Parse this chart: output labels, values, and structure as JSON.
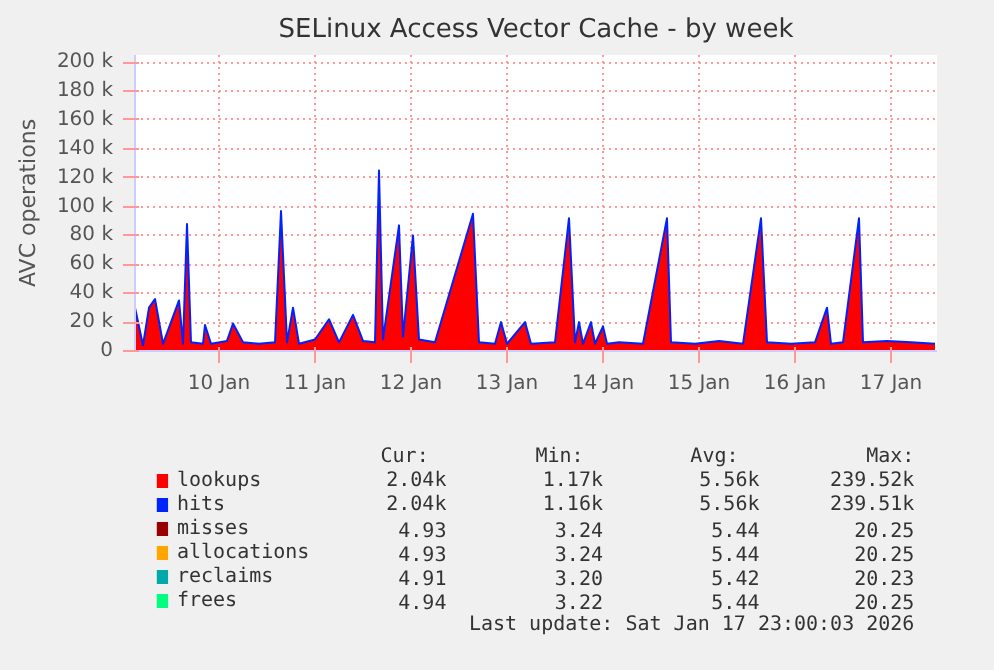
{
  "chart_data": {
    "type": "line",
    "title": "SELinux Access Vector Cache - by week",
    "ylabel": "AVC operations",
    "x": [
      "2026-01-09T15:00",
      "2026-01-09T17:00",
      "2026-01-09T18:30",
      "2026-01-09T20:00",
      "2026-01-09T22:00",
      "2026-01-10T02:00",
      "2026-01-10T03:00",
      "2026-01-10T04:00",
      "2026-01-10T05:00",
      "2026-01-10T08:00",
      "2026-01-10T08:30",
      "2026-01-10T10:00",
      "2026-01-10T14:00",
      "2026-01-10T15:30",
      "2026-01-10T18:00",
      "2026-01-10T22:00",
      "2026-01-11T02:00",
      "2026-01-11T03:30",
      "2026-01-11T05:00",
      "2026-01-11T06:30",
      "2026-01-11T08:00",
      "2026-01-11T12:00",
      "2026-01-11T15:30",
      "2026-01-11T18:00",
      "2026-01-11T21:30",
      "2026-01-12T00:00",
      "2026-01-12T03:00",
      "2026-01-12T04:00",
      "2026-01-12T05:00",
      "2026-01-12T09:00",
      "2026-01-12T10:00",
      "2026-01-12T12:30",
      "2026-01-12T14:00",
      "2026-01-12T18:00",
      "2026-01-13T03:30",
      "2026-01-13T05:00",
      "2026-01-13T09:00",
      "2026-01-13T10:30",
      "2026-01-13T12:00",
      "2026-01-13T16:30",
      "2026-01-13T18:00",
      "2026-01-14T00:00",
      "2026-01-14T03:30",
      "2026-01-14T05:00",
      "2026-01-14T06:00",
      "2026-01-14T07:00",
      "2026-01-14T09:00",
      "2026-01-14T10:00",
      "2026-01-14T12:00",
      "2026-01-14T13:00",
      "2026-01-14T16:00",
      "2026-01-14T22:00",
      "2026-01-15T04:00",
      "2026-01-15T05:00",
      "2026-01-15T11:00",
      "2026-01-15T17:00",
      "2026-01-15T23:00",
      "2026-01-16T03:30",
      "2026-01-16T05:00",
      "2026-01-16T11:00",
      "2026-01-16T17:00",
      "2026-01-16T20:00",
      "2026-01-16T21:00",
      "2026-01-17T00:00",
      "2026-01-17T04:00",
      "2026-01-17T05:00",
      "2026-01-17T11:00",
      "2026-01-17T17:00",
      "2026-01-17T23:00"
    ],
    "series": [
      {
        "name": "lookups",
        "type": "area",
        "color": "#ff0000",
        "values": [
          30000,
          4000,
          30000,
          36000,
          5000,
          35000,
          5000,
          88000,
          6000,
          5000,
          18000,
          5000,
          7000,
          19000,
          6000,
          5000,
          6000,
          97000,
          6000,
          30000,
          5000,
          8000,
          22000,
          6000,
          25000,
          7000,
          6000,
          125000,
          8000,
          87000,
          10000,
          80000,
          8000,
          6000,
          95000,
          6000,
          5000,
          20000,
          5000,
          20000,
          5000,
          6000,
          92000,
          6000,
          20000,
          5000,
          20000,
          5000,
          17000,
          5000,
          6000,
          5000,
          92000,
          6000,
          5000,
          7000,
          5000,
          92000,
          6000,
          5000,
          6000,
          30000,
          5000,
          6000,
          92000,
          6000,
          7000,
          6000,
          5000
        ]
      },
      {
        "name": "hits",
        "color": "#0022ff",
        "values": [
          30000,
          4000,
          30000,
          36000,
          5000,
          35000,
          5000,
          88000,
          6000,
          5000,
          18000,
          5000,
          7000,
          19000,
          6000,
          5000,
          6000,
          97000,
          6000,
          30000,
          5000,
          8000,
          22000,
          6000,
          25000,
          7000,
          6000,
          125000,
          8000,
          87000,
          10000,
          80000,
          8000,
          6000,
          95000,
          6000,
          5000,
          20000,
          5000,
          20000,
          5000,
          6000,
          92000,
          6000,
          20000,
          5000,
          20000,
          5000,
          17000,
          5000,
          6000,
          5000,
          92000,
          6000,
          5000,
          7000,
          5000,
          92000,
          6000,
          5000,
          6000,
          30000,
          5000,
          6000,
          92000,
          6000,
          7000,
          6000,
          5000
        ]
      },
      {
        "name": "misses",
        "color": "#990000",
        "values": [
          null,
          null,
          null,
          null,
          null,
          null,
          null,
          null,
          null,
          null,
          null,
          null,
          null,
          null,
          null,
          null,
          null,
          null,
          null,
          null,
          null,
          null,
          null,
          null,
          null,
          null,
          null,
          null,
          null,
          null,
          null,
          null,
          null,
          null,
          null,
          null,
          null,
          null,
          null,
          null,
          null,
          null,
          null,
          null,
          null,
          null,
          null,
          null,
          null,
          null,
          null,
          null,
          null,
          null,
          null,
          null,
          null,
          null,
          null,
          null,
          null,
          null,
          null,
          null,
          null,
          null,
          null,
          null,
          null
        ]
      },
      {
        "name": "allocations",
        "color": "#ffa500",
        "values": [
          null,
          null,
          null,
          null,
          null,
          null,
          null,
          null,
          null,
          null,
          null,
          null,
          null,
          null,
          null,
          null,
          null,
          null,
          null,
          null,
          null,
          null,
          null,
          null,
          null,
          null,
          null,
          null,
          null,
          null,
          null,
          null,
          null,
          null,
          null,
          null,
          null,
          null,
          null,
          null,
          null,
          null,
          null,
          null,
          null,
          null,
          null,
          null,
          null,
          null,
          null,
          null,
          null,
          null,
          null,
          null,
          null,
          null,
          null,
          null,
          null,
          null,
          null,
          null,
          null,
          null,
          null,
          null,
          null
        ]
      },
      {
        "name": "reclaims",
        "color": "#00aaaa",
        "values": [
          null,
          null,
          null,
          null,
          null,
          null,
          null,
          null,
          null,
          null,
          null,
          null,
          null,
          null,
          null,
          null,
          null,
          null,
          null,
          null,
          null,
          null,
          null,
          null,
          null,
          null,
          null,
          null,
          null,
          null,
          null,
          null,
          null,
          null,
          null,
          null,
          null,
          null,
          null,
          null,
          null,
          null,
          null,
          null,
          null,
          null,
          null,
          null,
          null,
          null,
          null,
          null,
          null,
          null,
          null,
          null,
          null,
          null,
          null,
          null,
          null,
          null,
          null,
          null,
          null,
          null,
          null,
          null,
          null
        ]
      },
      {
        "name": "frees",
        "color": "#00ff7f",
        "values": [
          null,
          null,
          null,
          null,
          null,
          null,
          null,
          null,
          null,
          null,
          null,
          null,
          null,
          null,
          null,
          null,
          null,
          null,
          null,
          null,
          null,
          null,
          null,
          null,
          null,
          null,
          null,
          null,
          null,
          null,
          null,
          null,
          null,
          null,
          null,
          null,
          null,
          null,
          null,
          null,
          null,
          null,
          null,
          null,
          null,
          null,
          null,
          null,
          null,
          null,
          null,
          null,
          null,
          null,
          null,
          null,
          null,
          null,
          null,
          null,
          null,
          null,
          null,
          null,
          null,
          null,
          null,
          null,
          null
        ]
      }
    ],
    "xlim": [
      "2026-01-09T15:00",
      "2026-01-17T23:30"
    ],
    "xticks": [
      {
        "value": "2026-01-10T12:00",
        "label": "10 Jan"
      },
      {
        "value": "2026-01-11T12:00",
        "label": "11 Jan"
      },
      {
        "value": "2026-01-12T12:00",
        "label": "12 Jan"
      },
      {
        "value": "2026-01-13T12:00",
        "label": "13 Jan"
      },
      {
        "value": "2026-01-14T12:00",
        "label": "14 Jan"
      },
      {
        "value": "2026-01-15T12:00",
        "label": "15 Jan"
      },
      {
        "value": "2026-01-16T12:00",
        "label": "16 Jan"
      },
      {
        "value": "2026-01-17T12:00",
        "label": "17 Jan"
      }
    ],
    "ylim": [
      0,
      205000
    ],
    "yticks": [
      {
        "value": 0,
        "label": "0"
      },
      {
        "value": 20000,
        "label": "20 k"
      },
      {
        "value": 40000,
        "label": "40 k"
      },
      {
        "value": 60000,
        "label": "60 k"
      },
      {
        "value": 80000,
        "label": "80 k"
      },
      {
        "value": 100000,
        "label": "100 k"
      },
      {
        "value": 120000,
        "label": "120 k"
      },
      {
        "value": 140000,
        "label": "140 k"
      },
      {
        "value": 160000,
        "label": "160 k"
      },
      {
        "value": 180000,
        "label": "180 k"
      },
      {
        "value": 200000,
        "label": "200 k"
      }
    ],
    "grid": true,
    "legend": "bottom",
    "annotations": [
      "Cur:",
      "Min:",
      "Avg:",
      "Max:",
      "2.04k",
      "1.17k",
      "5.56k",
      "239.52k",
      "2.04k",
      "1.16k",
      "5.56k",
      "239.51k",
      "4.93",
      "3.24",
      "5.44",
      "20.25",
      "4.93",
      "3.24",
      "5.44",
      "20.25",
      "4.91",
      "3.20",
      "5.42",
      "20.23",
      "4.94",
      "3.22",
      "5.44",
      "20.25",
      "Last update: Sat Jan 17 23:00:03 2026"
    ]
  }
}
